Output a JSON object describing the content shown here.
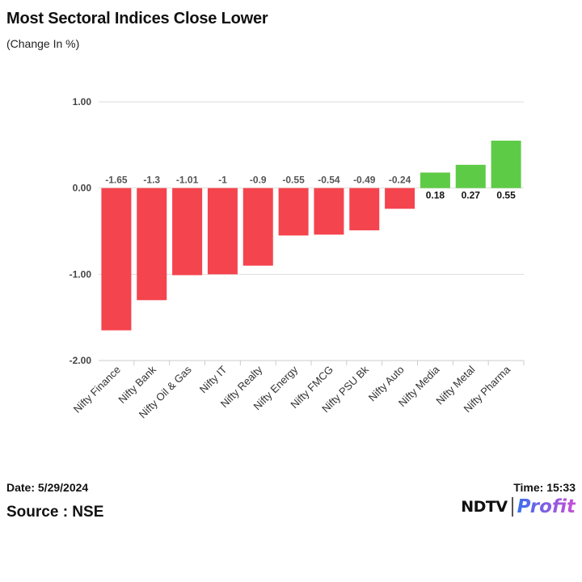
{
  "title": "Most Sectoral Indices Close Lower",
  "subtitle": "(Change In %)",
  "footer": {
    "date": "Date: 5/29/2024",
    "time": "Time: 15:33",
    "source": "Source : NSE"
  },
  "logo": {
    "brand": "NDTV",
    "product": "Profit"
  },
  "colors": {
    "negative": "#f4444e",
    "positive": "#5ecb47",
    "grid": "#dddddd"
  },
  "chart_data": {
    "type": "bar",
    "categories": [
      "Nifty Finance",
      "Nifty Bank",
      "Nifty Oil & Gas",
      "Nifty IT",
      "Nifty Realty",
      "Nifty Energy",
      "Nifty FMCG",
      "Nifty PSU Bk",
      "Nifty Auto",
      "Nifty Media",
      "Nifty Metal",
      "Nifty Pharma"
    ],
    "values": [
      -1.65,
      -1.3,
      -1.01,
      -1,
      -0.9,
      -0.55,
      -0.54,
      -0.49,
      -0.24,
      0.18,
      0.27,
      0.55
    ],
    "data_labels": [
      "-1.65",
      "-1.3",
      "-1.01",
      "-1",
      "-0.9",
      "-0.55",
      "-0.54",
      "-0.49",
      "-0.24",
      "0.18",
      "0.27",
      "0.55"
    ],
    "y_ticks": [
      1,
      0,
      -1,
      -2
    ],
    "y_tick_labels": [
      "1.00",
      "0.00",
      "-1.00",
      "-2.00"
    ],
    "ylim": [
      -2,
      1
    ],
    "grid": true,
    "legend": "none"
  }
}
